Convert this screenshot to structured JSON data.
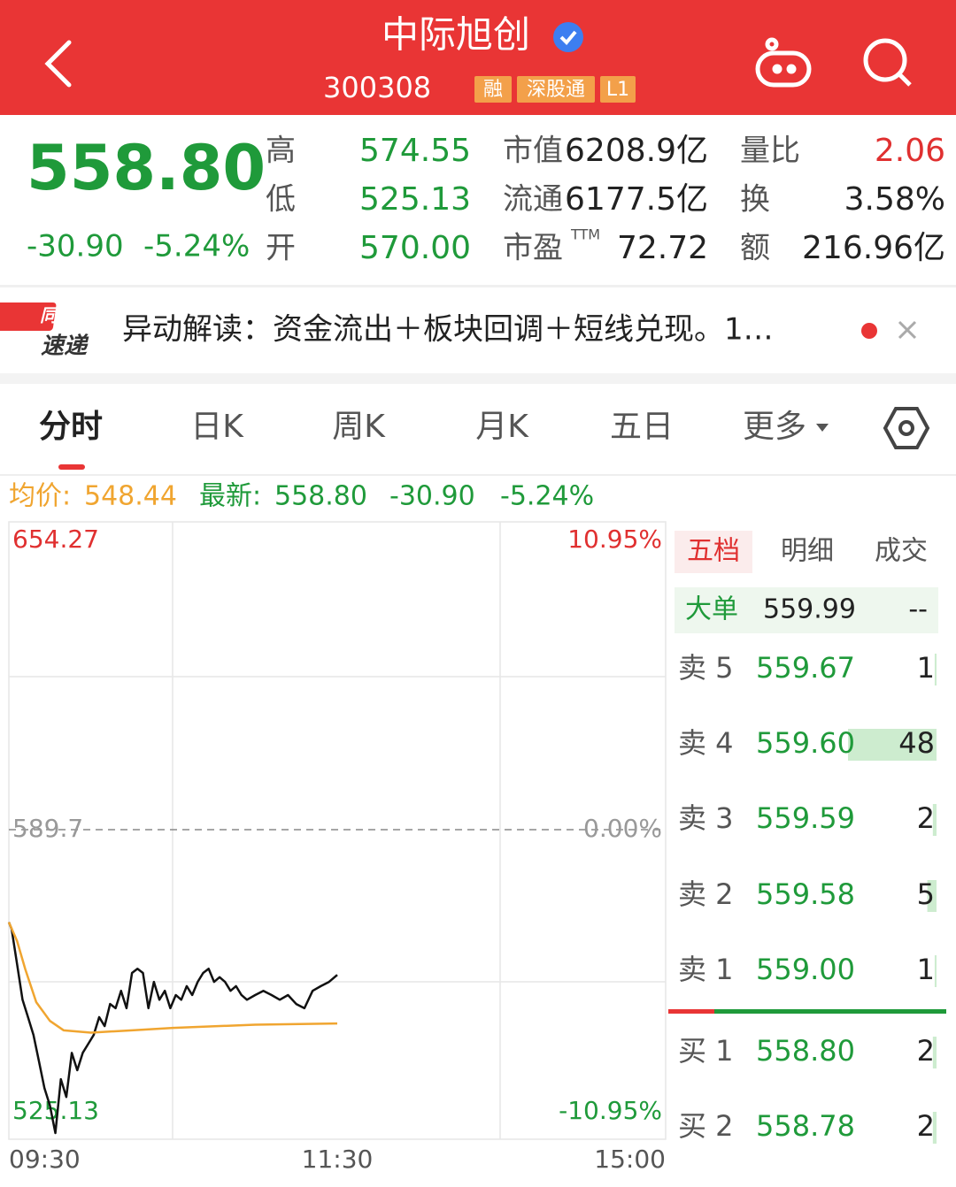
{
  "header": {
    "title": "中际旭创",
    "code": "300308",
    "tags": [
      "融",
      "深股通",
      "L1"
    ]
  },
  "quote": {
    "price": "558.80",
    "change": "-30.90",
    "change_pct": "-5.24%",
    "stats": [
      {
        "label": "高",
        "value": "574.55"
      },
      {
        "label": "低",
        "value": "525.13"
      },
      {
        "label": "开",
        "value": "570.00"
      },
      {
        "label": "市值",
        "value": "6208.9亿"
      },
      {
        "label": "流通",
        "value": "6177.5亿"
      },
      {
        "label": "市盈",
        "value": "72.72",
        "sup": "TTM"
      },
      {
        "label": "量比",
        "value": "2.06"
      },
      {
        "label": "换",
        "value": "3.58%"
      },
      {
        "label": "额",
        "value": "216.96亿"
      }
    ]
  },
  "news": {
    "logo_top": "同花顺",
    "logo_bottom": "速递",
    "text": "异动解读：资金流出＋板块回调＋短线兑现。1…"
  },
  "tabs": [
    "分时",
    "日K",
    "周K",
    "月K",
    "五日",
    "更多"
  ],
  "summary": {
    "avg_label": "均价:",
    "avg": "548.44",
    "latest_label": "最新:",
    "latest": "558.80",
    "change": "-30.90",
    "change_pct": "-5.24%"
  },
  "chart_data": {
    "type": "line",
    "xlim": [
      0,
      240
    ],
    "xticks": [
      {
        "value": 0,
        "label": "09:30"
      },
      {
        "value": 120,
        "label": "11:30"
      },
      {
        "value": 240,
        "label": "15:00"
      }
    ],
    "ylim": [
      525.13,
      654.27
    ],
    "yticks": [
      525.13,
      589.7,
      654.27
    ],
    "y2lim": [
      -10.95,
      10.95
    ],
    "y2ticks": [
      {
        "value": -10.95,
        "label": "-10.95%"
      },
      {
        "value": 0,
        "label": "0.00%"
      },
      {
        "value": 10.95,
        "label": "10.95%"
      }
    ],
    "series": [
      {
        "name": "price",
        "color": "#111111",
        "x": [
          0,
          1,
          3,
          5,
          7,
          9,
          11,
          13,
          15,
          17,
          19,
          21,
          23,
          25,
          27,
          29,
          31,
          33,
          35,
          37,
          39,
          41,
          43,
          45,
          47,
          49,
          51,
          53,
          55,
          57,
          59,
          61,
          63,
          65,
          67,
          69,
          71,
          73,
          75,
          77,
          79,
          81,
          83,
          85,
          87,
          90,
          93,
          96,
          99,
          102,
          105,
          108,
          111,
          114,
          117,
          120
        ],
        "values": [
          570,
          568.6,
          561.1,
          553.5,
          549.8,
          546,
          540.4,
          534.7,
          531,
          525.13,
          536.6,
          532.8,
          542.2,
          538.5,
          542.2,
          544.1,
          546,
          549.8,
          547.9,
          552.6,
          551.7,
          555.4,
          551.7,
          559.2,
          560.1,
          559.2,
          551.7,
          557.3,
          553.5,
          555.4,
          551.7,
          554.5,
          553.5,
          556.4,
          554.5,
          557.3,
          559.2,
          560.1,
          557.3,
          558.3,
          557.3,
          555.4,
          556.4,
          554.5,
          553.5,
          554.5,
          555.4,
          554.5,
          553.5,
          554.5,
          552.6,
          551.7,
          555.4,
          556.4,
          557.3,
          558.8
        ]
      },
      {
        "name": "average",
        "color": "#f0a530",
        "x": [
          0,
          3,
          6,
          10,
          15,
          20,
          30,
          45,
          60,
          90,
          120
        ],
        "values": [
          570,
          566,
          560,
          553,
          549,
          547,
          546.5,
          547,
          547.5,
          548.2,
          548.44
        ]
      }
    ]
  },
  "order_book": {
    "tabs": [
      "五档",
      "明细",
      "成交"
    ],
    "big": {
      "label": "大单",
      "price": "559.99",
      "volume": "--"
    },
    "rows": [
      {
        "label": "卖 5",
        "price": "559.67",
        "volume": 1
      },
      {
        "label": "卖 4",
        "price": "559.60",
        "volume": 48
      },
      {
        "label": "卖 3",
        "price": "559.59",
        "volume": 2
      },
      {
        "label": "卖 2",
        "price": "559.58",
        "volume": 5
      },
      {
        "label": "卖 1",
        "price": "559.00",
        "volume": 1
      },
      {
        "label": "买 1",
        "price": "558.80",
        "volume": 2
      },
      {
        "label": "买 2",
        "price": "558.78",
        "volume": 2
      }
    ]
  }
}
